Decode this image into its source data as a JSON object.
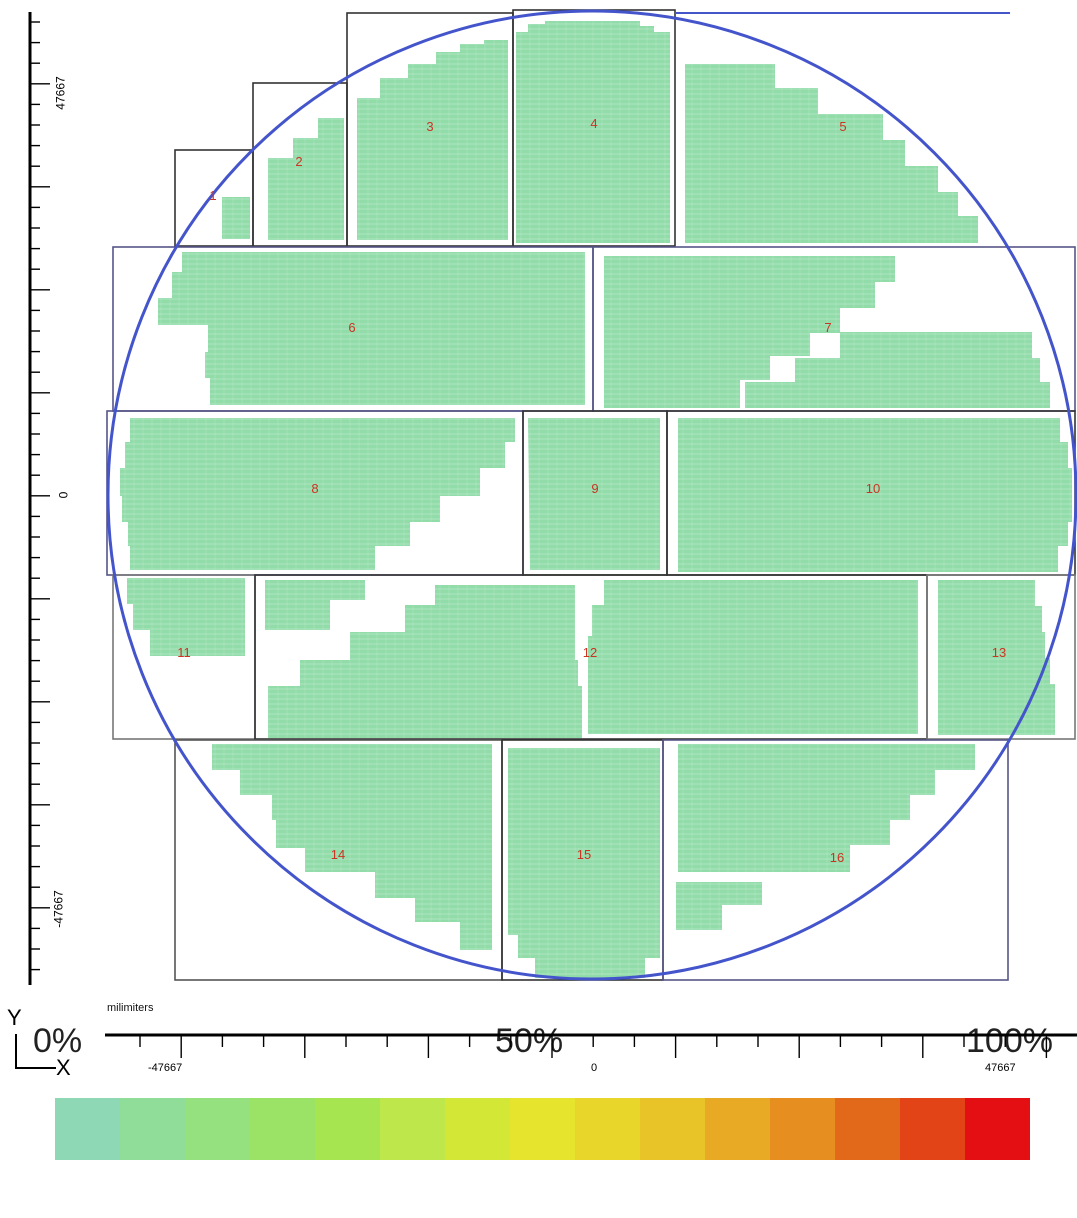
{
  "axes": {
    "unit_label": "milimiters",
    "y_tick_labels": [
      "47667",
      "0",
      "-47667"
    ],
    "x_tick_labels": [
      "-47667",
      "0",
      "47667"
    ],
    "y_letter": "Y",
    "x_letter": "X"
  },
  "fields": [
    {
      "id": "1",
      "label": "1"
    },
    {
      "id": "2",
      "label": "2"
    },
    {
      "id": "3",
      "label": "3"
    },
    {
      "id": "4",
      "label": "4"
    },
    {
      "id": "5",
      "label": "5"
    },
    {
      "id": "6",
      "label": "6"
    },
    {
      "id": "7",
      "label": "7"
    },
    {
      "id": "8",
      "label": "8"
    },
    {
      "id": "9",
      "label": "9"
    },
    {
      "id": "10",
      "label": "10"
    },
    {
      "id": "11",
      "label": "11"
    },
    {
      "id": "12",
      "label": "12"
    },
    {
      "id": "13",
      "label": "13"
    },
    {
      "id": "14",
      "label": "14"
    },
    {
      "id": "15",
      "label": "15"
    },
    {
      "id": "16",
      "label": "16"
    }
  ],
  "legend": {
    "labels": [
      "0%",
      "50%",
      "100%"
    ],
    "colors": [
      "#8ed8b6",
      "#8fdd98",
      "#95e17f",
      "#9ae367",
      "#a6e54f",
      "#bde74a",
      "#d3e737",
      "#e6e42c",
      "#e9d62a",
      "#e9c428",
      "#e8aa25",
      "#e68f20",
      "#e2691a",
      "#e24418",
      "#e40f12"
    ]
  },
  "colors": {
    "die_fill": "#92dcaa",
    "wafer_outline": "#4455cc",
    "field_border": "#333333",
    "label_text": "#cc3322"
  }
}
